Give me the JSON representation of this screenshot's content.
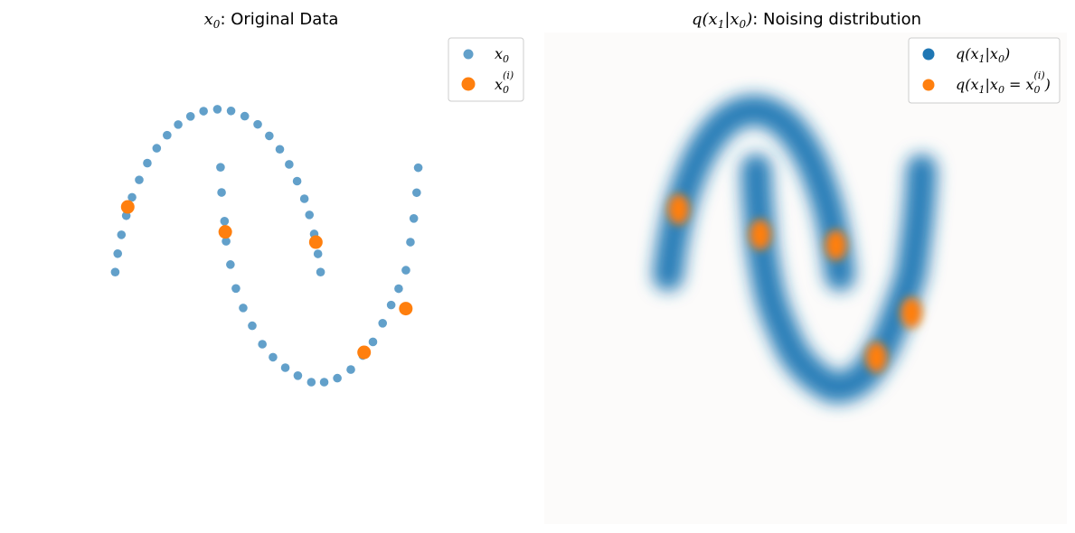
{
  "colors": {
    "blue": "#1f77b4",
    "orange": "#ff7f0e",
    "panel_bg": "#fcfbfa"
  },
  "chart_data": [
    {
      "type": "scatter",
      "title_math": "x",
      "title_math_sub": "0",
      "title_rest": ": Original Data",
      "grid": false,
      "axes_visible": false,
      "legend_placement": "top-right",
      "series": [
        {
          "name": "x0",
          "name_math": "x",
          "name_sub": "0",
          "color": "#1f77b4",
          "points": [
            [
              -0.975,
              0.223
            ],
            [
              -0.951,
              0.311
            ],
            [
              -0.916,
              0.401
            ],
            [
              -0.87,
              0.492
            ],
            [
              -0.815,
              0.58
            ],
            [
              -0.747,
              0.663
            ],
            [
              -0.67,
              0.743
            ],
            [
              -0.581,
              0.814
            ],
            [
              -0.482,
              0.876
            ],
            [
              -0.377,
              0.927
            ],
            [
              -0.26,
              0.966
            ],
            [
              -0.136,
              0.991
            ],
            [
              -0.005,
              1.0
            ],
            [
              0.125,
              0.992
            ],
            [
              0.255,
              0.967
            ],
            [
              0.378,
              0.928
            ],
            [
              0.488,
              0.873
            ],
            [
              0.588,
              0.809
            ],
            [
              0.677,
              0.737
            ],
            [
              0.752,
              0.657
            ],
            [
              0.821,
              0.573
            ],
            [
              0.869,
              0.496
            ],
            [
              0.914,
              0.405
            ],
            [
              0.95,
              0.31
            ],
            [
              0.975,
              0.223
            ],
            [
              0.025,
              0.723
            ],
            [
              0.035,
              0.603
            ],
            [
              0.063,
              0.466
            ],
            [
              0.078,
              0.37
            ],
            [
              0.119,
              0.259
            ],
            [
              0.171,
              0.145
            ],
            [
              0.24,
              0.052
            ],
            [
              0.326,
              -0.033
            ],
            [
              0.422,
              -0.121
            ],
            [
              0.523,
              -0.183
            ],
            [
              0.64,
              -0.233
            ],
            [
              0.759,
              -0.271
            ],
            [
              0.887,
              -0.302
            ],
            [
              1.009,
              -0.302
            ],
            [
              1.134,
              -0.283
            ],
            [
              1.262,
              -0.242
            ],
            [
              1.376,
              -0.175
            ],
            [
              1.472,
              -0.11
            ],
            [
              1.564,
              -0.021
            ],
            [
              1.645,
              0.066
            ],
            [
              1.716,
              0.144
            ],
            [
              1.785,
              0.232
            ],
            [
              1.828,
              0.366
            ],
            [
              1.86,
              0.479
            ],
            [
              1.887,
              0.602
            ],
            [
              1.902,
              0.721
            ]
          ]
        },
        {
          "name": "x0(i)",
          "name_math": "x",
          "name_sub": "0",
          "name_sup": "(i)",
          "color": "#ff7f0e",
          "points": [
            [
              -0.856,
              0.534
            ],
            [
              0.07,
              0.415
            ],
            [
              0.93,
              0.366
            ],
            [
              1.388,
              -0.16
            ],
            [
              1.784,
              0.049
            ]
          ]
        }
      ],
      "legend": [
        {
          "label_math": "x",
          "label_sub": "0",
          "label_sup": ""
        },
        {
          "label_math": "x",
          "label_sub": "0",
          "label_sup": "(i)"
        }
      ]
    },
    {
      "type": "heatmap",
      "title_math": "q(x",
      "title_math_sub": "1",
      "title_math_2": "|x",
      "title_math_sub_2": "0",
      "title_math_3": ")",
      "title_rest": ": Noising distribution",
      "grid": false,
      "axes_visible": false,
      "legend_placement": "top-right",
      "noise_std": 0.075,
      "series": [
        {
          "name": "q(x1|x0)",
          "color": "#1f77b4",
          "source": "blue points of first panel, blurred"
        },
        {
          "name": "q(x1|x0 = x0(i))",
          "color": "#ff7f0e",
          "points": [
            [
              -0.856,
              0.534
            ],
            [
              0.07,
              0.415
            ],
            [
              0.93,
              0.366
            ],
            [
              1.388,
              -0.16
            ],
            [
              1.784,
              0.049
            ]
          ]
        }
      ],
      "legend": [
        {
          "label": "q(x",
          "sub": "1",
          "label2": "|x",
          "sub2": "0",
          "label3": ")",
          "sup": "",
          "tail": ""
        },
        {
          "label": "q(x",
          "sub": "1",
          "label2": "|x",
          "sub2": "0",
          "label3": " = x",
          "sup": "(i)",
          "sub3": "0",
          "tail": ")"
        }
      ]
    }
  ]
}
